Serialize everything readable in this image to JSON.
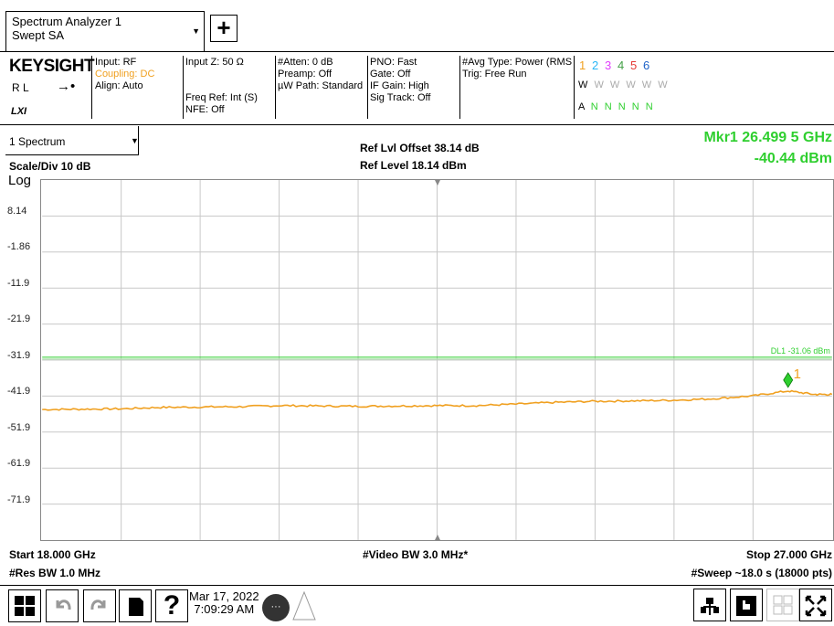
{
  "app": {
    "mode_line1": "Spectrum Analyzer 1",
    "mode_line2": "Swept SA",
    "add_symbol": "+"
  },
  "settings": {
    "brand": "KEYSIGHT",
    "rl": "R L",
    "lxi": "LXI",
    "input": "Input: RF",
    "coupling": "Coupling: DC",
    "align": "Align: Auto",
    "input_z": "Input Z: 50 Ω",
    "freq_ref": "Freq Ref: Int (S)",
    "nfe": "NFE: Off",
    "atten": "#Atten: 0 dB",
    "preamp": "Preamp: Off",
    "uw_path": "µW Path: Standard",
    "pno": "PNO: Fast",
    "gate": "Gate: Off",
    "if_gain": "IF Gain: High",
    "sig_track": "Sig Track: Off",
    "avg_type": "#Avg Type: Power (RMS",
    "trig": "Trig: Free Run",
    "trace_nums": [
      "1",
      "2",
      "3",
      "4",
      "5",
      "6"
    ],
    "trace_colors": [
      "#f0a020",
      "#29b6f6",
      "#e040fb",
      "#43a047",
      "#e53935",
      "#1e63c8"
    ],
    "trace_types": "W W W W W W",
    "trace_detectors": "A N N N N N"
  },
  "plot": {
    "window_name": "1 Spectrum",
    "scale_div": "Scale/Div 10 dB",
    "log_label": "Log",
    "ref_offset": "Ref Lvl Offset 38.14 dB",
    "ref_level": "Ref Level 18.14 dBm",
    "marker_label": "Mkr1  26.499 5 GHz",
    "marker_value": "-40.44 dBm",
    "marker_number": "1",
    "display_line_label": "DL1 -31.06 dBm",
    "y_ticks": [
      "8.14",
      "-1.86",
      "-11.9",
      "-21.9",
      "-31.9",
      "-41.9",
      "-51.9",
      "-61.9",
      "-71.9"
    ],
    "start": "Start 18.000 GHz",
    "res_bw": "#Res BW 1.0 MHz",
    "video_bw": "#Video BW 3.0 MHz*",
    "stop": "Stop 27.000 GHz",
    "sweep": "#Sweep ~18.0 s (18000 pts)",
    "trace_color": "#f0a020",
    "dl_color": "#2fcf2f"
  },
  "chart_data": {
    "type": "line",
    "x_unit": "GHz",
    "y_unit": "dBm",
    "xlim": [
      18.0,
      27.0
    ],
    "ylim": [
      -81.86,
      18.14
    ],
    "grid": true,
    "display_line": -31.06,
    "marker": {
      "x": 26.4995,
      "y": -40.44
    },
    "series": [
      {
        "x": [
          18.0,
          18.45,
          18.9,
          19.35,
          19.8,
          20.25,
          20.7,
          21.15,
          21.6,
          22.05,
          22.5,
          22.95,
          23.4,
          23.85,
          24.3,
          24.75,
          25.2,
          25.65,
          26.1,
          26.4995,
          26.8,
          27.0
        ],
        "y": [
          -45.6,
          -45.5,
          -45.4,
          -45.0,
          -44.9,
          -44.8,
          -44.5,
          -44.6,
          -44.7,
          -44.6,
          -44.5,
          -44.5,
          -44.1,
          -43.6,
          -43.3,
          -43.2,
          -43.0,
          -42.6,
          -41.8,
          -40.44,
          -41.4,
          -41.4
        ]
      }
    ]
  },
  "footer": {
    "date": "Mar 17, 2022",
    "time": "7:09:29 AM",
    "help_symbol": "?",
    "chat_symbol": "···"
  }
}
